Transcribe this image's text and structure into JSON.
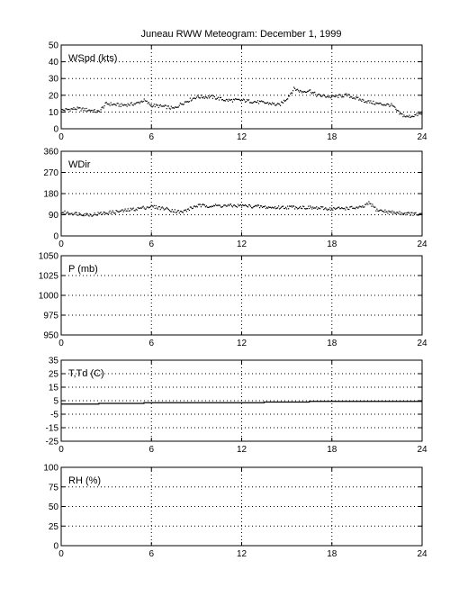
{
  "chart_data": {
    "title": "Juneau RWW Meteogram:  December  1, 1999",
    "type": "scatter",
    "panels": [
      {
        "id": "wspd",
        "title": "WSpd (kts)",
        "ylim": [
          0,
          50
        ],
        "yticks": [
          0,
          10,
          20,
          30,
          40,
          50
        ],
        "xlim": [
          0,
          24
        ],
        "xticks": [
          0,
          6,
          12,
          18,
          24
        ],
        "grid": true,
        "series": [
          {
            "style": "points",
            "x": [
              0,
              1,
              2,
              2.5,
              3,
              4,
              5,
              5.5,
              6,
              7,
              7.5,
              8,
              9,
              10,
              11,
              12,
              13,
              14,
              14.5,
              15,
              15.5,
              16,
              16.5,
              17,
              18,
              19,
              20,
              21,
              22,
              22.5,
              23,
              24
            ],
            "y": [
              11,
              12,
              11,
              10,
              15,
              14,
              15,
              17,
              14,
              13,
              12,
              15,
              19,
              19,
              17,
              17,
              16,
              15,
              14,
              18,
              24,
              22,
              23,
              20,
              19,
              20,
              17,
              15,
              14,
              9,
              7,
              9
            ]
          }
        ]
      },
      {
        "id": "wdir",
        "title": "WDir",
        "ylim": [
          0,
          360
        ],
        "yticks": [
          0,
          90,
          180,
          270,
          360
        ],
        "xlim": [
          0,
          24
        ],
        "xticks": [
          0,
          6,
          12,
          18,
          24
        ],
        "grid": true,
        "series": [
          {
            "style": "points",
            "x": [
              0,
              1,
              2,
              3,
              4,
              5,
              6,
              7,
              8,
              9,
              10,
              11,
              12,
              13,
              14,
              15,
              16,
              17,
              18,
              19,
              20,
              20.5,
              21,
              22,
              23,
              24
            ],
            "y": [
              100,
              95,
              90,
              98,
              105,
              115,
              125,
              115,
              100,
              128,
              128,
              128,
              128,
              125,
              120,
              122,
              122,
              118,
              115,
              118,
              120,
              140,
              110,
              100,
              95,
              90
            ]
          }
        ]
      },
      {
        "id": "pres",
        "title": "P (mb)",
        "ylim": [
          950,
          1050
        ],
        "yticks": [
          950,
          975,
          1000,
          1025,
          1050
        ],
        "xlim": [
          0,
          24
        ],
        "xticks": [
          0,
          6,
          12,
          18,
          24
        ],
        "grid": true,
        "series": []
      },
      {
        "id": "temp",
        "title": "T,Td (C)",
        "ylim": [
          -25,
          35
        ],
        "yticks": [
          -25,
          -15,
          -5,
          5,
          15,
          25,
          35
        ],
        "xlim": [
          0,
          24
        ],
        "xticks": [
          0,
          6,
          12,
          18,
          24
        ],
        "grid": true,
        "series": [
          {
            "style": "step",
            "x": [
              0,
              2.5,
              2.5,
              5.5,
              5.5,
              13.5,
              13.5,
              16.5,
              16.5,
              24
            ],
            "y": [
              2.5,
              2.5,
              3,
              3,
              3.5,
              3.5,
              4,
              4,
              4.5,
              4.5
            ]
          }
        ]
      },
      {
        "id": "rh",
        "title": "RH (%)",
        "ylim": [
          0,
          100
        ],
        "yticks": [
          0,
          25,
          50,
          75,
          100
        ],
        "xlim": [
          0,
          24
        ],
        "xticks": [
          0,
          6,
          12,
          18,
          24
        ],
        "grid": true,
        "series": []
      }
    ]
  }
}
